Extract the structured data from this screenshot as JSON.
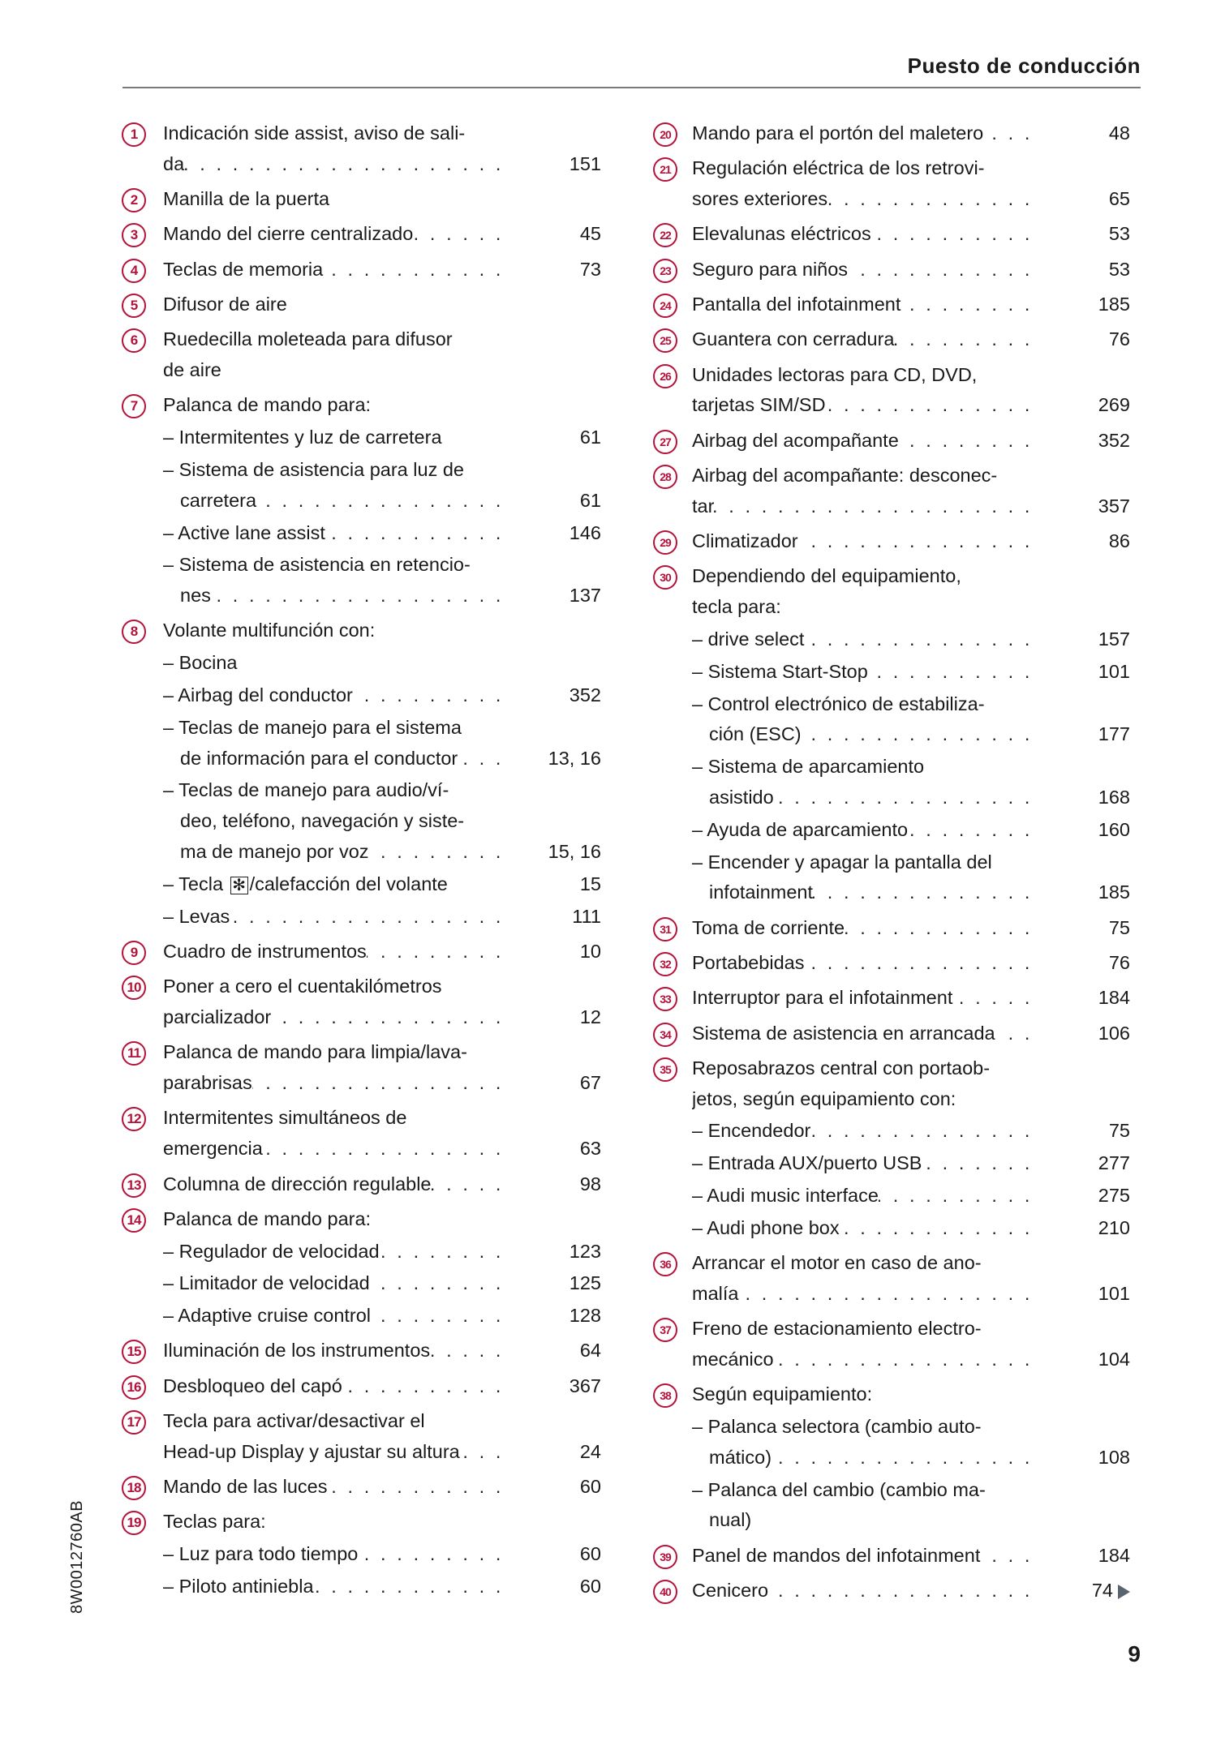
{
  "header": {
    "title": "Puesto de conducción"
  },
  "footer": {
    "page_number": "9",
    "side_code": "8W0012760AB"
  },
  "colors": {
    "accent": "#b5123a",
    "continue_arrow": "#5a6470"
  },
  "columns": [
    {
      "items": [
        {
          "num": "1",
          "lines": [
            "Indicación side assist, aviso de sali-",
            "da"
          ],
          "leader": true,
          "page": "151"
        },
        {
          "num": "2",
          "lines": [
            "Manilla de la puerta"
          ]
        },
        {
          "num": "3",
          "lines": [
            "Mando del cierre centralizado"
          ],
          "leader": true,
          "page": "45"
        },
        {
          "num": "4",
          "lines": [
            "Teclas de memoria"
          ],
          "leader": true,
          "page": "73"
        },
        {
          "num": "5",
          "lines": [
            "Difusor de aire"
          ]
        },
        {
          "num": "6",
          "lines": [
            "Ruedecilla moleteada para difusor",
            "de aire"
          ]
        },
        {
          "num": "7",
          "lines": [
            "Palanca de mando para:"
          ],
          "subs": [
            {
              "lines": [
                "– Intermitentes y luz de carretera"
              ],
              "page": "61"
            },
            {
              "lines": [
                "– Sistema de asistencia para luz de",
                "carretera"
              ],
              "leader": true,
              "page": "61"
            },
            {
              "lines": [
                "– Active lane assist"
              ],
              "leader": true,
              "page": "146"
            },
            {
              "lines": [
                "– Sistema de asistencia en retencio-",
                "nes"
              ],
              "leader": true,
              "page": "137"
            }
          ]
        },
        {
          "num": "8",
          "lines": [
            "Volante multifunción con:"
          ],
          "subs": [
            {
              "lines": [
                "– Bocina"
              ]
            },
            {
              "lines": [
                "– Airbag del conductor"
              ],
              "leader": true,
              "page": "352"
            },
            {
              "lines": [
                "– Teclas de manejo para el sistema",
                "de información para el conductor"
              ],
              "leader": true,
              "page": "13, 16"
            },
            {
              "lines": [
                "– Teclas de manejo para audio/ví-",
                "deo, teléfono, navegación y siste-",
                "ma de manejo por voz"
              ],
              "leader": true,
              "page": "15, 16"
            },
            {
              "icon_line": {
                "before": "– Tecla",
                "icon": "asterisk-key-icon",
                "glyph": "✻",
                "after": "/calefacción del volante"
              },
              "page": "15"
            },
            {
              "lines": [
                "– Levas"
              ],
              "leader": true,
              "page": "111"
            }
          ]
        },
        {
          "num": "9",
          "lines": [
            "Cuadro de instrumentos"
          ],
          "leader": true,
          "page": "10"
        },
        {
          "num": "10",
          "lines": [
            "Poner a cero el cuentakilómetros",
            "parcializador"
          ],
          "leader": true,
          "page": "12"
        },
        {
          "num": "11",
          "lines": [
            "Palanca de mando para limpia/lava-",
            "parabrisas"
          ],
          "leader": true,
          "page": "67"
        },
        {
          "num": "12",
          "lines": [
            "Intermitentes simultáneos de",
            "emergencia"
          ],
          "leader": true,
          "page": "63"
        },
        {
          "num": "13",
          "lines": [
            "Columna de dirección regulable"
          ],
          "leader": true,
          "page": "98"
        },
        {
          "num": "14",
          "lines": [
            "Palanca de mando para:"
          ],
          "subs": [
            {
              "lines": [
                "– Regulador de velocidad"
              ],
              "leader": true,
              "page": "123"
            },
            {
              "lines": [
                "– Limitador de velocidad"
              ],
              "leader": true,
              "page": "125"
            },
            {
              "lines": [
                "– Adaptive cruise control"
              ],
              "leader": true,
              "page": "128"
            }
          ]
        },
        {
          "num": "15",
          "lines": [
            "Iluminación de los instrumentos"
          ],
          "leader": true,
          "page": "64"
        },
        {
          "num": "16",
          "lines": [
            "Desbloqueo del capó"
          ],
          "leader": true,
          "page": "367"
        },
        {
          "num": "17",
          "lines": [
            "Tecla para activar/desactivar el",
            "Head-up Display y ajustar su altura"
          ],
          "leader": true,
          "page": "24"
        },
        {
          "num": "18",
          "lines": [
            "Mando de las luces"
          ],
          "leader": true,
          "page": "60"
        },
        {
          "num": "19",
          "lines": [
            "Teclas para:"
          ],
          "subs": [
            {
              "lines": [
                "– Luz para todo tiempo"
              ],
              "leader": true,
              "page": "60"
            },
            {
              "lines": [
                "– Piloto antiniebla"
              ],
              "leader": true,
              "page": "60"
            }
          ]
        }
      ]
    },
    {
      "items": [
        {
          "num": "20",
          "lines": [
            "Mando para el portón del maletero"
          ],
          "leader": true,
          "page": "48"
        },
        {
          "num": "21",
          "lines": [
            "Regulación eléctrica de los retrovi-",
            "sores exteriores"
          ],
          "leader": true,
          "page": "65"
        },
        {
          "num": "22",
          "lines": [
            "Elevalunas eléctricos"
          ],
          "leader": true,
          "page": "53"
        },
        {
          "num": "23",
          "lines": [
            "Seguro para niños"
          ],
          "leader": true,
          "page": "53"
        },
        {
          "num": "24",
          "lines": [
            "Pantalla del infotainment"
          ],
          "leader": true,
          "page": "185"
        },
        {
          "num": "25",
          "lines": [
            "Guantera con cerradura"
          ],
          "leader": true,
          "page": "76"
        },
        {
          "num": "26",
          "lines": [
            "Unidades lectoras para CD, DVD,",
            "tarjetas SIM/SD"
          ],
          "leader": true,
          "page": "269"
        },
        {
          "num": "27",
          "lines": [
            "Airbag del acompañante"
          ],
          "leader": true,
          "page": "352"
        },
        {
          "num": "28",
          "lines": [
            "Airbag del acompañante: desconec-",
            "tar"
          ],
          "leader": true,
          "page": "357"
        },
        {
          "num": "29",
          "lines": [
            "Climatizador"
          ],
          "leader": true,
          "page": "86"
        },
        {
          "num": "30",
          "lines": [
            "Dependiendo del equipamiento,",
            "tecla para:"
          ],
          "subs": [
            {
              "lines": [
                "– drive select"
              ],
              "leader": true,
              "page": "157"
            },
            {
              "lines": [
                "– Sistema Start-Stop"
              ],
              "leader": true,
              "page": "101"
            },
            {
              "lines": [
                "– Control electrónico de estabiliza-",
                "ción (ESC)"
              ],
              "leader": true,
              "page": "177"
            },
            {
              "lines": [
                "– Sistema de aparcamiento",
                "asistido"
              ],
              "leader": true,
              "page": "168"
            },
            {
              "lines": [
                "– Ayuda de aparcamiento"
              ],
              "leader": true,
              "page": "160"
            },
            {
              "lines": [
                "– Encender y apagar la pantalla del",
                "infotainment"
              ],
              "leader": true,
              "page": "185"
            }
          ]
        },
        {
          "num": "31",
          "lines": [
            "Toma de corriente"
          ],
          "leader": true,
          "page": "75"
        },
        {
          "num": "32",
          "lines": [
            "Portabebidas"
          ],
          "leader": true,
          "page": "76"
        },
        {
          "num": "33",
          "lines": [
            "Interruptor para el infotainment"
          ],
          "leader": true,
          "page": "184"
        },
        {
          "num": "34",
          "lines": [
            "Sistema de asistencia en arrancada"
          ],
          "leader": true,
          "page": "106"
        },
        {
          "num": "35",
          "lines": [
            "Reposabrazos central con portaob-",
            "jetos, según equipamiento con:"
          ],
          "subs": [
            {
              "lines": [
                "– Encendedor"
              ],
              "leader": true,
              "page": "75"
            },
            {
              "lines": [
                "– Entrada AUX/puerto USB"
              ],
              "leader": true,
              "page": "277"
            },
            {
              "lines": [
                "– Audi music interface"
              ],
              "leader": true,
              "page": "275"
            },
            {
              "lines": [
                "– Audi phone box"
              ],
              "leader": true,
              "page": "210"
            }
          ]
        },
        {
          "num": "36",
          "lines": [
            "Arrancar el motor en caso de ano-",
            "malía"
          ],
          "leader": true,
          "page": "101"
        },
        {
          "num": "37",
          "lines": [
            "Freno de estacionamiento electro-",
            "mecánico"
          ],
          "leader": true,
          "page": "104"
        },
        {
          "num": "38",
          "lines": [
            "Según equipamiento:"
          ],
          "subs": [
            {
              "lines": [
                "– Palanca selectora (cambio auto-",
                "mático)"
              ],
              "leader": true,
              "page": "108"
            },
            {
              "lines": [
                "– Palanca del cambio (cambio ma-",
                "nual)"
              ]
            }
          ]
        },
        {
          "num": "39",
          "lines": [
            "Panel de mandos del infotainment"
          ],
          "leader": true,
          "page": "184"
        },
        {
          "num": "40",
          "lines": [
            "Cenicero"
          ],
          "leader": true,
          "page": "74",
          "continues": true
        }
      ]
    }
  ]
}
